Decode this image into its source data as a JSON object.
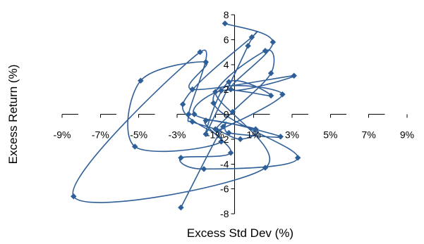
{
  "chart_data": {
    "type": "scatter",
    "title": "",
    "xlabel": "Excess Std Dev (%)",
    "ylabel": "Excess Return (%)",
    "xlim": [
      -9,
      9
    ],
    "ylim": [
      -8,
      8
    ],
    "x_ticks": [
      -9,
      -7,
      -5,
      -3,
      -1,
      1,
      3,
      5,
      7,
      9
    ],
    "x_tick_labels": [
      "-9%",
      "-7%",
      "-5%",
      "-3%",
      "-1%",
      "1%",
      "3%",
      "5%",
      "7%",
      "9%"
    ],
    "y_ticks": [
      -8,
      -6,
      -4,
      -2,
      0,
      2,
      4,
      6,
      8
    ],
    "y_tick_labels": [
      "-8",
      "-6",
      "-4",
      "-2",
      "0",
      "2",
      "4",
      "6",
      "8"
    ],
    "grid": false,
    "legend": false,
    "connected": true,
    "smooth": true,
    "marker": "diamond",
    "series": [
      {
        "color": "#2f5f98",
        "points": [
          [
            -0.5,
            7.3
          ],
          [
            2.0,
            5.8
          ],
          [
            -0.2,
            2.0
          ],
          [
            3.1,
            3.1
          ],
          [
            -2.2,
            2.0
          ],
          [
            -1.5,
            4.2
          ],
          [
            -4.9,
            2.7
          ],
          [
            -5.2,
            -2.6
          ],
          [
            -0.7,
            -2.2
          ],
          [
            -2.7,
            0.8
          ],
          [
            0.9,
            6.2
          ],
          [
            0.7,
            5.5
          ],
          [
            -1.5,
            -1.6
          ],
          [
            -0.3,
            2.6
          ],
          [
            1.9,
            1.5
          ],
          [
            -0.7,
            1.9
          ],
          [
            -2.1,
            0.0
          ],
          [
            1.1,
            -1.2
          ],
          [
            0.3,
            -2.0
          ],
          [
            -1.0,
            -1.2
          ],
          [
            -2.2,
            -0.6
          ],
          [
            -2.4,
            0.0
          ],
          [
            -1.8,
            5.0
          ],
          [
            -8.4,
            -6.6
          ],
          [
            1.6,
            -4.3
          ],
          [
            -1.0,
            1.8
          ],
          [
            2.5,
            1.6
          ],
          [
            -0.9,
            -1.3
          ],
          [
            -0.1,
            0.2
          ],
          [
            1.9,
            3.3
          ],
          [
            1.6,
            5.1
          ],
          [
            -1.1,
            0.9
          ],
          [
            3.3,
            -3.5
          ],
          [
            -1.6,
            -4.4
          ],
          [
            -2.8,
            -3.5
          ],
          [
            -0.2,
            -3.1
          ],
          [
            -1.5,
            -0.5
          ],
          [
            2.4,
            -1.8
          ],
          [
            -0.3,
            -1.5
          ],
          [
            -0.6,
            -1.0
          ],
          [
            -2.8,
            -7.5
          ]
        ]
      }
    ]
  }
}
